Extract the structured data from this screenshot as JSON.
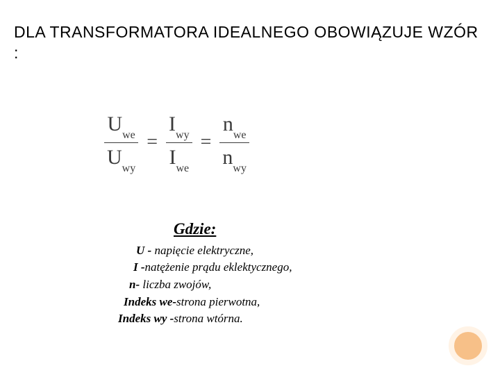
{
  "title": "DLA TRANSFORMATORA IDEALNEGO OBOWIĄZUJE WZÓR :",
  "formula": {
    "frac1": {
      "numBase": "U",
      "numSub": "we",
      "denBase": "U",
      "denSub": "wy"
    },
    "eq1": "=",
    "frac2": {
      "numBase": "I",
      "numSub": "wy",
      "denBase": "I",
      "denSub": "we"
    },
    "eq2": "=",
    "frac3": {
      "numBase": "n",
      "numSub": "we",
      "denBase": "n",
      "denSub": "wy"
    },
    "text_color": "#3a3a3a",
    "fontsize_main": 30,
    "fontsize_sub": 16
  },
  "gdzie_label": "Gdzie:",
  "definitions": [
    {
      "symbol": "U - ",
      "text": "napięcie elektryczne,"
    },
    {
      "symbol": "I -",
      "text": "natężenie prądu eklektycznego,"
    },
    {
      "symbol": "n- ",
      "text": "liczba zwojów,"
    },
    {
      "symbol": "Indeks we-",
      "text": "strona pierwotna,"
    },
    {
      "symbol": "Indeks wy -",
      "text": "strona wtórna."
    }
  ],
  "colors": {
    "background": "#ffffff",
    "title": "#000000",
    "circle_fill": "#f7c088",
    "circle_ring": "#fff3e6"
  },
  "typography": {
    "title_fontsize": 23,
    "gdzie_fontsize": 23,
    "defs_fontsize": 17,
    "title_font": "Arial",
    "body_font": "Times New Roman"
  }
}
